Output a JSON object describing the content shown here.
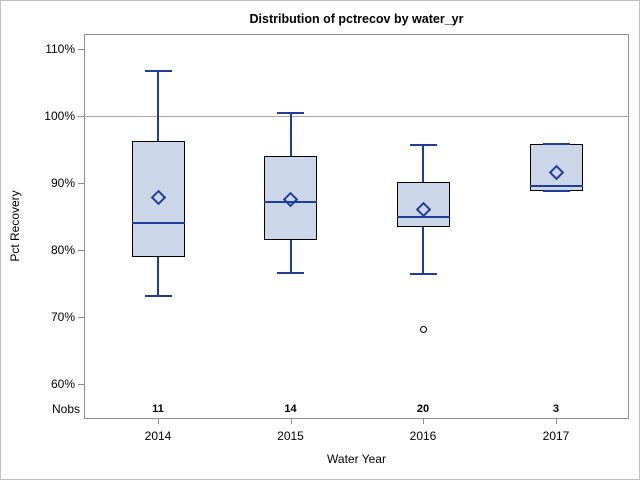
{
  "window": {
    "background": "#ffffff",
    "frame_color": "#c0c0c0"
  },
  "chart_data": {
    "type": "box",
    "title": "Distribution of pctrecov by water_yr",
    "xlabel": "Water Year",
    "ylabel": "Pct Recovery",
    "ylim": [
      55,
      112
    ],
    "grid": false,
    "reference_line": 100,
    "yticks": [
      {
        "value": 110,
        "label": "110%"
      },
      {
        "value": 100,
        "label": "100%"
      },
      {
        "value": 90,
        "label": "90%"
      },
      {
        "value": 80,
        "label": "80%"
      },
      {
        "value": 70,
        "label": "70%"
      },
      {
        "value": 60,
        "label": "60%"
      }
    ],
    "nobs_label": "Nobs",
    "categories": [
      "2014",
      "2015",
      "2016",
      "2017"
    ],
    "groups": [
      {
        "year": "2014",
        "nobs": "11",
        "min": 73.2,
        "q1": 79.0,
        "median": 84.0,
        "q3": 96.3,
        "max": 106.7,
        "mean": 87.8,
        "outliers": []
      },
      {
        "year": "2015",
        "nobs": "14",
        "min": 76.5,
        "q1": 81.5,
        "median": 87.2,
        "q3": 94.0,
        "max": 100.5,
        "mean": 87.5,
        "outliers": []
      },
      {
        "year": "2016",
        "nobs": "20",
        "min": 76.4,
        "q1": 83.4,
        "median": 85.0,
        "q3": 90.1,
        "max": 95.7,
        "mean": 86.0,
        "outliers": [
          68.2
        ]
      },
      {
        "year": "2017",
        "nobs": "3",
        "min": 88.8,
        "q1": 88.8,
        "median": 89.5,
        "q3": 95.8,
        "max": 95.8,
        "mean": 91.5,
        "outliers": []
      }
    ],
    "colors": {
      "box_fill": "#cbd6e8",
      "box_border": "#000000",
      "line": "#1f3d99",
      "axis": "#8f8f8f",
      "reference": "#a8a8a8",
      "outlier": "#000000",
      "text": "#000000"
    }
  }
}
